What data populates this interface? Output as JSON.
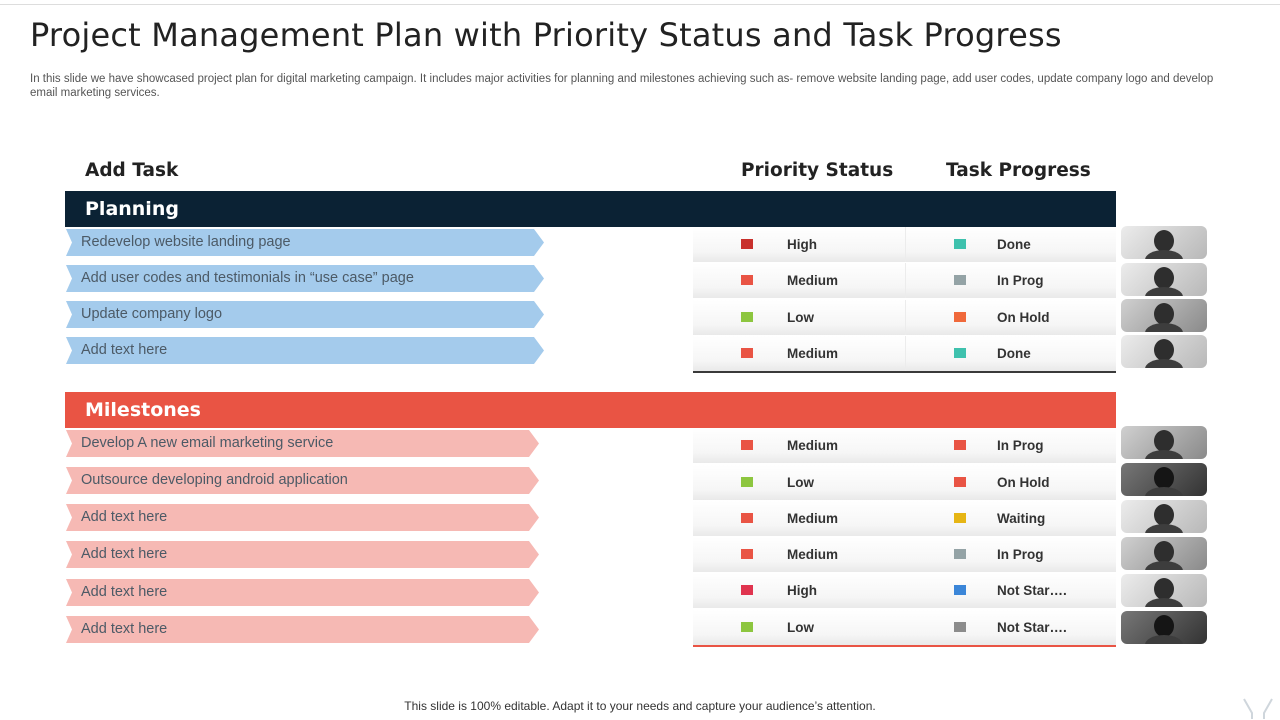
{
  "header": {
    "title": "Project Management Plan with Priority Status and Task Progress",
    "subtitle": "In this slide we have showcased project plan for digital marketing campaign. It includes major activities for planning and milestones achieving such as- remove website landing page, add user codes, update company logo and develop email marketing services."
  },
  "columns": {
    "task": "Add Task",
    "priority": "Priority Status",
    "progress": "Task Progress"
  },
  "sections": [
    {
      "title": "Planning",
      "color": "#0b2234",
      "task_color": "#a4cbec",
      "rows": [
        {
          "task": "Redevelop website landing page",
          "priority": "High",
          "priority_color": "#c8302c",
          "progress": "Done",
          "progress_color": "#3ec1ad",
          "avatar": "person-photo"
        },
        {
          "task": "Add user codes and testimonials in “use case” page",
          "priority": "Medium",
          "priority_color": "#e95444",
          "progress": "In Prog",
          "progress_color": "#94a3a6",
          "avatar": "person-photo"
        },
        {
          "task": "Update company logo",
          "priority": "Low",
          "priority_color": "#8dc63f",
          "progress": "On Hold",
          "progress_color": "#f0693b",
          "avatar": "person-photo"
        },
        {
          "task": "Add text here",
          "priority": "Medium",
          "priority_color": "#e95444",
          "progress": "Done",
          "progress_color": "#3ec1ad",
          "avatar": "person-photo"
        }
      ]
    },
    {
      "title": "Milestones",
      "color": "#e95444",
      "task_color": "#f6b9b4",
      "rows": [
        {
          "task": "Develop A new email marketing service",
          "priority": "Medium",
          "priority_color": "#e95444",
          "progress": "In Prog",
          "progress_color": "#e95444",
          "avatar": "person-photo"
        },
        {
          "task": "Outsource developing android application",
          "priority": "Low",
          "priority_color": "#8dc63f",
          "progress": "On Hold",
          "progress_color": "#e95444",
          "avatar": "person-photo"
        },
        {
          "task": "Add text here",
          "priority": "Medium",
          "priority_color": "#e95444",
          "progress": "Waiting",
          "progress_color": "#e6b514",
          "avatar": "person-photo"
        },
        {
          "task": "Add text here",
          "priority": "Medium",
          "priority_color": "#e95444",
          "progress": "In Prog",
          "progress_color": "#94a3a6",
          "avatar": "person-photo"
        },
        {
          "task": "Add text here",
          "priority": "High",
          "priority_color": "#e0344f",
          "progress": "Not Star….",
          "progress_color": "#3b86d8",
          "avatar": "person-photo"
        },
        {
          "task": "Add text here",
          "priority": "Low",
          "priority_color": "#8dc63f",
          "progress": "Not Star….",
          "progress_color": "#8c8c8c",
          "avatar": "person-photo"
        }
      ]
    }
  ],
  "footer": {
    "note": "This slide is 100% editable. Adapt it to your needs and capture your audience’s attention."
  }
}
